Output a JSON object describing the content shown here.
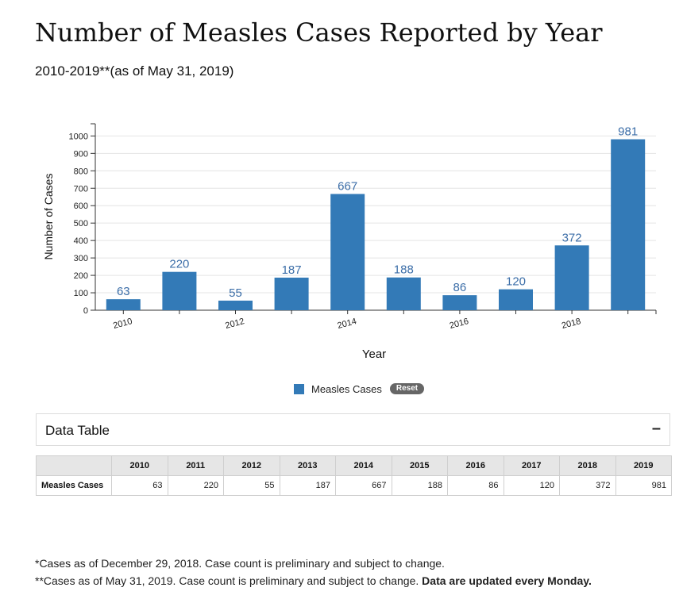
{
  "page": {
    "title": "Number of Measles Cases Reported by Year",
    "subtitle": "2010-2019**(as of May 31, 2019)"
  },
  "chart_data": {
    "type": "bar",
    "title": "Number of Measles Cases Reported by Year",
    "subtitle": "2010-2019**(as of May 31, 2019)",
    "xlabel": "Year",
    "ylabel": "Number of Cases",
    "categories": [
      "2010",
      "2011",
      "2012",
      "2013",
      "2014",
      "2015",
      "2016",
      "2017",
      "2018",
      "2019"
    ],
    "x_tick_labels": [
      "2010",
      "2012",
      "2014",
      "2016",
      "2018"
    ],
    "y_ticks": [
      0,
      100,
      200,
      300,
      400,
      500,
      600,
      700,
      800,
      900,
      1000
    ],
    "ylim": [
      0,
      1070
    ],
    "series": [
      {
        "name": "Measles Cases",
        "values": [
          63,
          220,
          55,
          187,
          667,
          188,
          86,
          120,
          372,
          981
        ]
      }
    ],
    "data_labels": true,
    "grid": true,
    "legend": "bottom-center",
    "color": "#337ab7"
  },
  "legend": {
    "label": "Measles Cases",
    "reset_label": "Reset"
  },
  "data_table": {
    "title": "Data Table",
    "toggle": "–",
    "years": [
      "2010",
      "2011",
      "2012",
      "2013",
      "2014",
      "2015",
      "2016",
      "2017",
      "2018",
      "2019"
    ],
    "row_label": "Measles Cases",
    "values": [
      "63",
      "220",
      "55",
      "187",
      "667",
      "188",
      "86",
      "120",
      "372",
      "981"
    ]
  },
  "footnotes": {
    "line1": "*Cases as of December 29, 2018. Case count is preliminary and subject to change.",
    "line2": "**Cases as of May 31, 2019. Case count is preliminary and subject to change.",
    "line2_bold": "Data are updated every Monday."
  }
}
